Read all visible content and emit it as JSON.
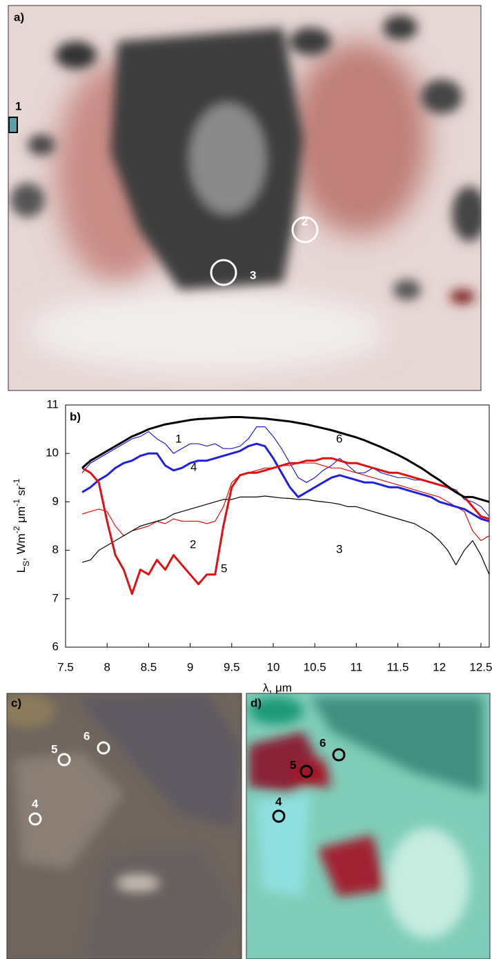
{
  "panel_a": {
    "label": "a)",
    "markers": [
      "1",
      "2",
      "3"
    ]
  },
  "panel_c": {
    "label": "c)",
    "markers": [
      "4",
      "5",
      "6"
    ]
  },
  "panel_d": {
    "label": "d)",
    "markers": [
      "4",
      "5",
      "6"
    ]
  },
  "chart_data": {
    "type": "line",
    "panel_label": "b)",
    "xlabel": "λ, μm",
    "ylabel": [
      "L",
      "S",
      ", Wm",
      "-2",
      " μm",
      "-1",
      " sr",
      "-1"
    ],
    "xlim": [
      7.5,
      12.6
    ],
    "ylim": [
      6,
      11
    ],
    "xticks": [
      7.5,
      8,
      8.5,
      9,
      9.5,
      10,
      10.5,
      11,
      11.5,
      12,
      12.5
    ],
    "yticks": [
      6,
      7,
      8,
      9,
      10,
      11
    ],
    "x": [
      7.7,
      7.8,
      7.9,
      8.0,
      8.1,
      8.2,
      8.3,
      8.4,
      8.5,
      8.6,
      8.7,
      8.8,
      8.9,
      9.0,
      9.1,
      9.2,
      9.3,
      9.4,
      9.5,
      9.6,
      9.7,
      9.8,
      9.9,
      10.0,
      10.1,
      10.2,
      10.3,
      10.4,
      10.5,
      10.6,
      10.7,
      10.8,
      10.9,
      11.0,
      11.1,
      11.2,
      11.3,
      11.4,
      11.5,
      11.6,
      11.7,
      11.8,
      11.9,
      12.0,
      12.1,
      12.2,
      12.3,
      12.4,
      12.5,
      12.6
    ],
    "series": [
      {
        "name": "1",
        "color": "#1f1fe0",
        "linewidth": 1.2,
        "values": [
          9.6,
          9.8,
          9.9,
          10.0,
          10.1,
          10.2,
          10.3,
          10.35,
          10.45,
          10.3,
          10.2,
          10.0,
          10.1,
          10.2,
          10.2,
          10.15,
          10.2,
          10.1,
          10.1,
          10.15,
          10.3,
          10.55,
          10.55,
          10.35,
          10.1,
          9.8,
          9.5,
          9.4,
          9.5,
          9.65,
          9.75,
          9.9,
          9.75,
          9.6,
          9.6,
          9.7,
          9.6,
          9.55,
          9.5,
          9.5,
          9.45,
          9.45,
          9.4,
          9.35,
          9.3,
          9.25,
          9.05,
          9.0,
          8.9,
          8.7
        ]
      },
      {
        "name": "2",
        "color": "#e01010",
        "linewidth": 1.2,
        "values": [
          8.75,
          8.8,
          8.85,
          8.8,
          8.5,
          8.3,
          8.4,
          8.45,
          8.5,
          8.6,
          8.55,
          8.65,
          8.6,
          8.6,
          8.6,
          8.55,
          8.6,
          8.9,
          9.4,
          9.55,
          9.6,
          9.65,
          9.7,
          9.7,
          9.75,
          9.75,
          9.8,
          9.8,
          9.8,
          9.75,
          9.7,
          9.7,
          9.65,
          9.6,
          9.55,
          9.5,
          9.45,
          9.4,
          9.35,
          9.3,
          9.25,
          9.2,
          9.15,
          9.1,
          9.0,
          8.9,
          8.8,
          8.4,
          8.2,
          8.3
        ]
      },
      {
        "name": "3",
        "color": "#000000",
        "linewidth": 1.2,
        "values": [
          7.75,
          7.8,
          8.0,
          8.1,
          8.2,
          8.3,
          8.4,
          8.5,
          8.55,
          8.6,
          8.65,
          8.75,
          8.8,
          8.85,
          8.9,
          8.95,
          9.0,
          9.05,
          9.05,
          9.1,
          9.1,
          9.1,
          9.12,
          9.1,
          9.08,
          9.07,
          9.05,
          9.05,
          9.02,
          9.0,
          8.98,
          8.95,
          8.9,
          8.9,
          8.85,
          8.8,
          8.75,
          8.7,
          8.65,
          8.6,
          8.55,
          8.45,
          8.35,
          8.2,
          8.0,
          7.7,
          8.0,
          8.2,
          7.9,
          7.5
        ]
      },
      {
        "name": "4",
        "color": "#1f1fe0",
        "linewidth": 3,
        "values": [
          9.2,
          9.3,
          9.45,
          9.55,
          9.7,
          9.8,
          9.85,
          9.95,
          10.0,
          10.0,
          9.75,
          9.65,
          9.7,
          9.8,
          9.85,
          9.85,
          9.9,
          9.95,
          10.0,
          10.05,
          10.15,
          10.2,
          10.15,
          9.9,
          9.6,
          9.3,
          9.1,
          9.2,
          9.3,
          9.4,
          9.5,
          9.55,
          9.5,
          9.45,
          9.4,
          9.4,
          9.35,
          9.3,
          9.3,
          9.25,
          9.2,
          9.15,
          9.1,
          9.0,
          8.95,
          8.9,
          8.85,
          8.75,
          8.65,
          8.6
        ]
      },
      {
        "name": "5",
        "color": "#e01010",
        "linewidth": 3,
        "values": [
          9.7,
          9.6,
          9.4,
          8.6,
          7.9,
          7.6,
          7.1,
          7.6,
          7.5,
          7.8,
          7.6,
          7.9,
          7.7,
          7.5,
          7.3,
          7.5,
          7.5,
          8.5,
          9.3,
          9.55,
          9.6,
          9.6,
          9.65,
          9.7,
          9.75,
          9.8,
          9.8,
          9.85,
          9.85,
          9.9,
          9.9,
          9.85,
          9.8,
          9.8,
          9.75,
          9.7,
          9.65,
          9.6,
          9.6,
          9.55,
          9.5,
          9.45,
          9.4,
          9.35,
          9.3,
          9.2,
          9.1,
          8.9,
          8.7,
          8.65
        ]
      },
      {
        "name": "6",
        "color": "#000000",
        "linewidth": 3,
        "values": [
          9.7,
          9.85,
          9.95,
          10.05,
          10.15,
          10.25,
          10.35,
          10.42,
          10.5,
          10.55,
          10.6,
          10.63,
          10.66,
          10.69,
          10.71,
          10.72,
          10.73,
          10.74,
          10.75,
          10.75,
          10.74,
          10.73,
          10.72,
          10.7,
          10.68,
          10.66,
          10.63,
          10.6,
          10.56,
          10.52,
          10.48,
          10.43,
          10.38,
          10.33,
          10.27,
          10.2,
          10.13,
          10.05,
          9.97,
          9.88,
          9.78,
          9.68,
          9.56,
          9.45,
          9.32,
          9.2,
          9.1,
          9.1,
          9.05,
          9.0
        ]
      }
    ]
  }
}
